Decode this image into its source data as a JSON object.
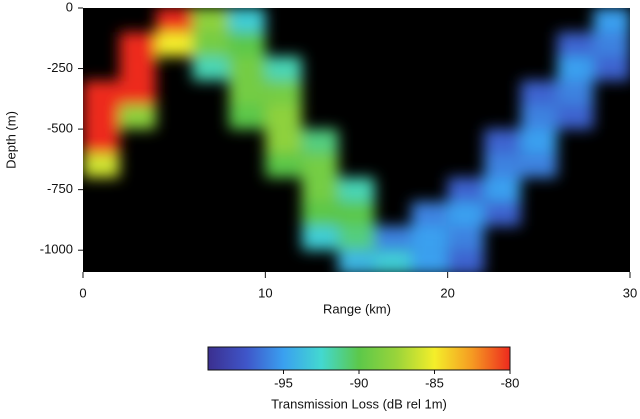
{
  "chart_data": {
    "type": "heatmap",
    "xlabel": "Range (km)",
    "ylabel": "Depth (m)",
    "colorbar_label": "Transmission Loss (dB rel 1m)",
    "xlim": [
      0,
      30
    ],
    "xticks": [
      0,
      10,
      20,
      30
    ],
    "ylim": [
      -1090,
      0
    ],
    "yticks": [
      0,
      -250,
      -500,
      -750,
      -1000
    ],
    "clim": [
      -100,
      -80
    ],
    "cticks": [
      -95,
      -90,
      -85,
      -80
    ],
    "background": "#000000",
    "colormap": [
      "#3b2f8f",
      "#3f55c8",
      "#3aa0f0",
      "#43d8d0",
      "#5cc84a",
      "#9ad43a",
      "#f4ee2a",
      "#f59a22",
      "#ee2a1e"
    ],
    "x": [
      1,
      3,
      5,
      7,
      9,
      11,
      13,
      15,
      17,
      19,
      21,
      23,
      25,
      27,
      29
    ],
    "y": [
      -50,
      -150,
      -250,
      -350,
      -450,
      -550,
      -650,
      -750,
      -850,
      -950,
      -1050
    ],
    "z": [
      [
        null,
        null,
        -80,
        -88,
        -93,
        null,
        null,
        null,
        null,
        null,
        null,
        null,
        null,
        null,
        -95
      ],
      [
        null,
        -80,
        -85,
        -89,
        -90,
        null,
        null,
        null,
        null,
        null,
        null,
        null,
        null,
        -97,
        -96
      ],
      [
        null,
        -80,
        null,
        -92,
        -89,
        -92,
        null,
        null,
        null,
        null,
        null,
        null,
        null,
        -95,
        -97
      ],
      [
        -80,
        -80,
        null,
        null,
        -89,
        -89,
        null,
        null,
        null,
        null,
        null,
        null,
        -97,
        -96,
        null
      ],
      [
        -80,
        -88,
        null,
        null,
        -90,
        -88,
        null,
        null,
        null,
        null,
        null,
        null,
        -96,
        -97,
        null
      ],
      [
        -80,
        null,
        null,
        null,
        null,
        -88,
        -91,
        null,
        null,
        null,
        null,
        -97,
        -95,
        null,
        null
      ],
      [
        -86,
        null,
        null,
        null,
        null,
        -90,
        -89,
        null,
        null,
        null,
        null,
        -96,
        -96,
        null,
        null
      ],
      [
        null,
        null,
        null,
        null,
        null,
        null,
        -89,
        -92,
        null,
        null,
        -97,
        -95,
        null,
        null,
        null
      ],
      [
        null,
        null,
        null,
        null,
        null,
        null,
        -90,
        -90,
        null,
        -96,
        -95,
        -97,
        null,
        null,
        null
      ],
      [
        null,
        null,
        null,
        null,
        null,
        null,
        -93,
        -91,
        -96,
        -95,
        -96,
        null,
        null,
        null,
        null
      ],
      [
        null,
        null,
        null,
        null,
        null,
        null,
        null,
        -94,
        -93,
        -95,
        -97,
        null,
        null,
        null,
        null
      ]
    ]
  }
}
